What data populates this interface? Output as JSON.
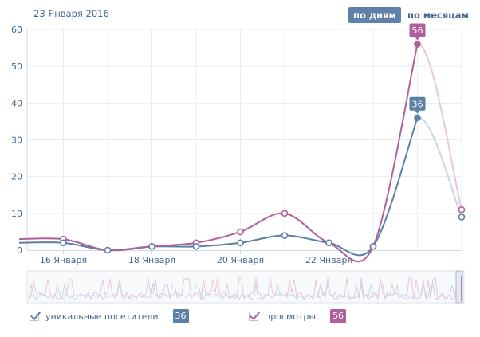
{
  "header": {
    "date": "23 Января 2016",
    "by_days": "по дням",
    "by_months": "по месяцам"
  },
  "colors": {
    "visitors": "#5b7fa6",
    "views": "#b05f9b",
    "visitors_light": "#c9d6e4",
    "views_light": "#e8c6dd",
    "grid": "#e9edf1",
    "axis": "#cfd8e2",
    "text": "#45688e"
  },
  "legend": {
    "visitors_label": "уникальные посетители",
    "visitors_value": "36",
    "views_label": "просмотры",
    "views_value": "56"
  },
  "chart_data": {
    "type": "line",
    "title": "",
    "xlabel": "",
    "ylabel": "",
    "ylim": [
      0,
      60
    ],
    "yticks": [
      "0",
      "10",
      "20",
      "30",
      "40",
      "50",
      "60"
    ],
    "xticks": [
      {
        "day": 16,
        "label": "16 Января"
      },
      {
        "day": 18,
        "label": "18 Января"
      },
      {
        "day": 20,
        "label": "20 Января"
      },
      {
        "day": 22,
        "label": "22 Января"
      }
    ],
    "x": [
      15,
      16,
      17,
      18,
      19,
      20,
      21,
      22,
      23,
      24
    ],
    "series": [
      {
        "name": "уникальные посетители",
        "values": [
          2,
          2,
          0,
          1,
          1,
          2,
          4,
          2,
          1,
          36
        ],
        "forecast": 9
      },
      {
        "name": "просмотры",
        "values": [
          3,
          3,
          0,
          1,
          2,
          5,
          10,
          2,
          1,
          56
        ],
        "forecast": 11
      }
    ],
    "tooltips": [
      {
        "series": "уникальные посетители",
        "value": "36"
      },
      {
        "series": "просмотры",
        "value": "56"
      }
    ]
  }
}
